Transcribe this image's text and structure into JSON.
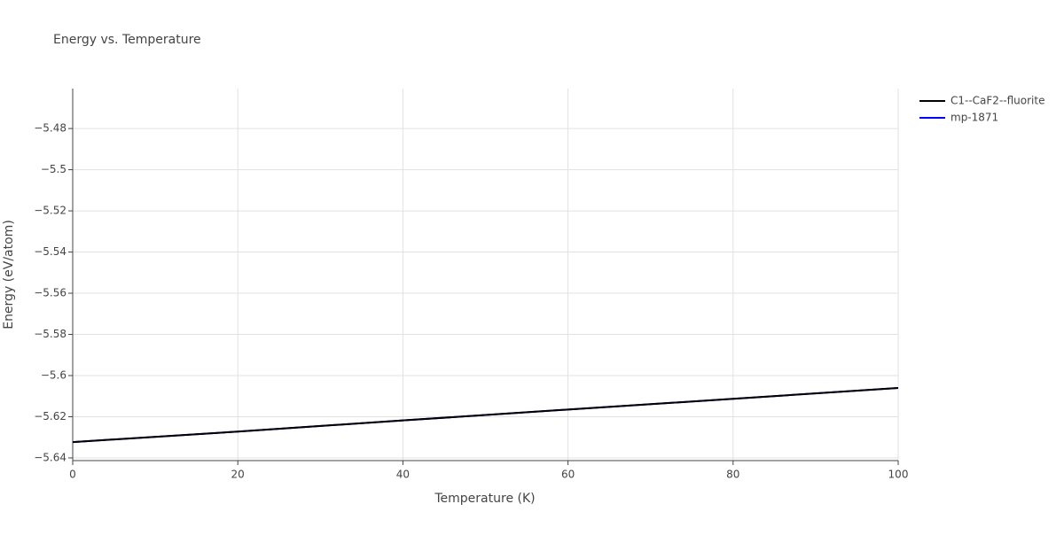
{
  "chart_data": {
    "type": "line",
    "title": "Energy vs. Temperature",
    "x_label": "Temperature (K)",
    "y_label": "Energy (eV/atom)",
    "x": [
      0,
      20,
      40,
      60,
      80,
      100
    ],
    "series": [
      {
        "name": "C1--CaF2--fluorite",
        "color": "#000000",
        "values": [
          -5.6323,
          -5.6272,
          -5.6218,
          -5.6165,
          -5.6113,
          -5.606
        ]
      },
      {
        "name": "mp-1871",
        "color": "#0000ff",
        "values": [
          -5.6323,
          -5.6272,
          -5.6218,
          -5.6165,
          -5.6113,
          -5.606
        ]
      }
    ],
    "xlim": [
      0,
      100
    ],
    "xticks": [
      0,
      20,
      40,
      60,
      80,
      100
    ],
    "ylim": [
      -5.6413,
      -5.4606
    ],
    "yticks": [
      {
        "value": -5.64,
        "label": "−5.64"
      },
      {
        "value": -5.62,
        "label": "−5.62"
      },
      {
        "value": -5.6,
        "label": "−5.6"
      },
      {
        "value": -5.58,
        "label": "−5.58"
      },
      {
        "value": -5.56,
        "label": "−5.56"
      },
      {
        "value": -5.54,
        "label": "−5.54"
      },
      {
        "value": -5.52,
        "label": "−5.52"
      },
      {
        "value": -5.5,
        "label": "−5.5"
      },
      {
        "value": -5.48,
        "label": "−5.48"
      }
    ],
    "grid": true,
    "legend": "right"
  }
}
